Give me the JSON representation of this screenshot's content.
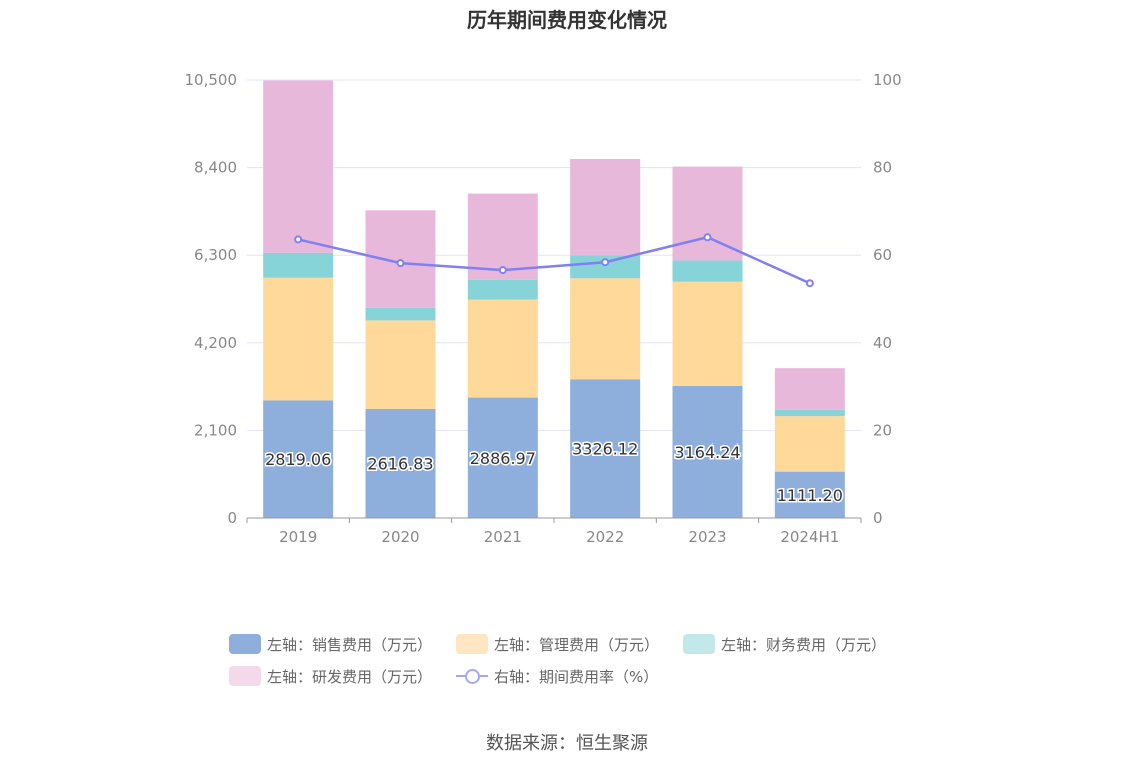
{
  "title": "历年期间费用变化情况",
  "source": "数据来源：恒生聚源",
  "legend": [
    {
      "label": "左轴：销售费用（万元）",
      "color": "#8eaedc",
      "kind": "bar"
    },
    {
      "label": "左轴：管理费用（万元）",
      "color": "#fee6c2",
      "kind": "bar"
    },
    {
      "label": "左轴：财务费用（万元）",
      "color": "#c2e8ea",
      "kind": "bar"
    },
    {
      "label": "左轴：研发费用（万元）",
      "color": "#f3d9ea",
      "kind": "bar"
    },
    {
      "label": "右轴：期间费用率（%）",
      "color": "#a7a6f2",
      "kind": "line"
    }
  ],
  "chart_data": {
    "type": "bar",
    "stacked": true,
    "categories": [
      "2019",
      "2020",
      "2021",
      "2022",
      "2023",
      "2024H1"
    ],
    "series": [
      {
        "name": "左轴：销售费用（万元）",
        "axis": "left",
        "color": "#8eaedc",
        "values": [
          2819.06,
          2616.83,
          2886.97,
          3326.12,
          3164.24,
          1111.2
        ],
        "labels": [
          "2819.06",
          "2616.83",
          "2886.97",
          "3326.12",
          "3164.24",
          "1111.20"
        ]
      },
      {
        "name": "左轴：管理费用（万元）",
        "axis": "left",
        "color": "#fed99a",
        "values": [
          2940,
          2120,
          2350,
          2420,
          2500,
          1330
        ]
      },
      {
        "name": "左轴：财务费用（万元）",
        "axis": "left",
        "color": "#86d4d8",
        "values": [
          600,
          300,
          470,
          550,
          510,
          150
        ]
      },
      {
        "name": "左轴：研发费用（万元）",
        "axis": "left",
        "color": "#e8b8da",
        "values": [
          4130,
          2340,
          2070,
          2310,
          2250,
          1000
        ]
      },
      {
        "name": "右轴：期间费用率（%）",
        "axis": "right",
        "type": "line",
        "color": "#8080f0",
        "values": [
          63.6,
          58.2,
          56.6,
          58.4,
          64.1,
          53.6
        ]
      }
    ],
    "y_left": {
      "min": 0,
      "max": 10500,
      "ticks": [
        0,
        2100,
        4200,
        6300,
        8400,
        10500
      ],
      "tick_labels": [
        "0",
        "2,100",
        "4,200",
        "6,300",
        "8,400",
        "10,500"
      ]
    },
    "y_right": {
      "min": 0,
      "max": 100,
      "ticks": [
        0,
        20,
        40,
        60,
        80,
        100
      ],
      "tick_labels": [
        "0",
        "20",
        "40",
        "60",
        "80",
        "100"
      ]
    },
    "grid": true,
    "legend_position": "bottom"
  }
}
